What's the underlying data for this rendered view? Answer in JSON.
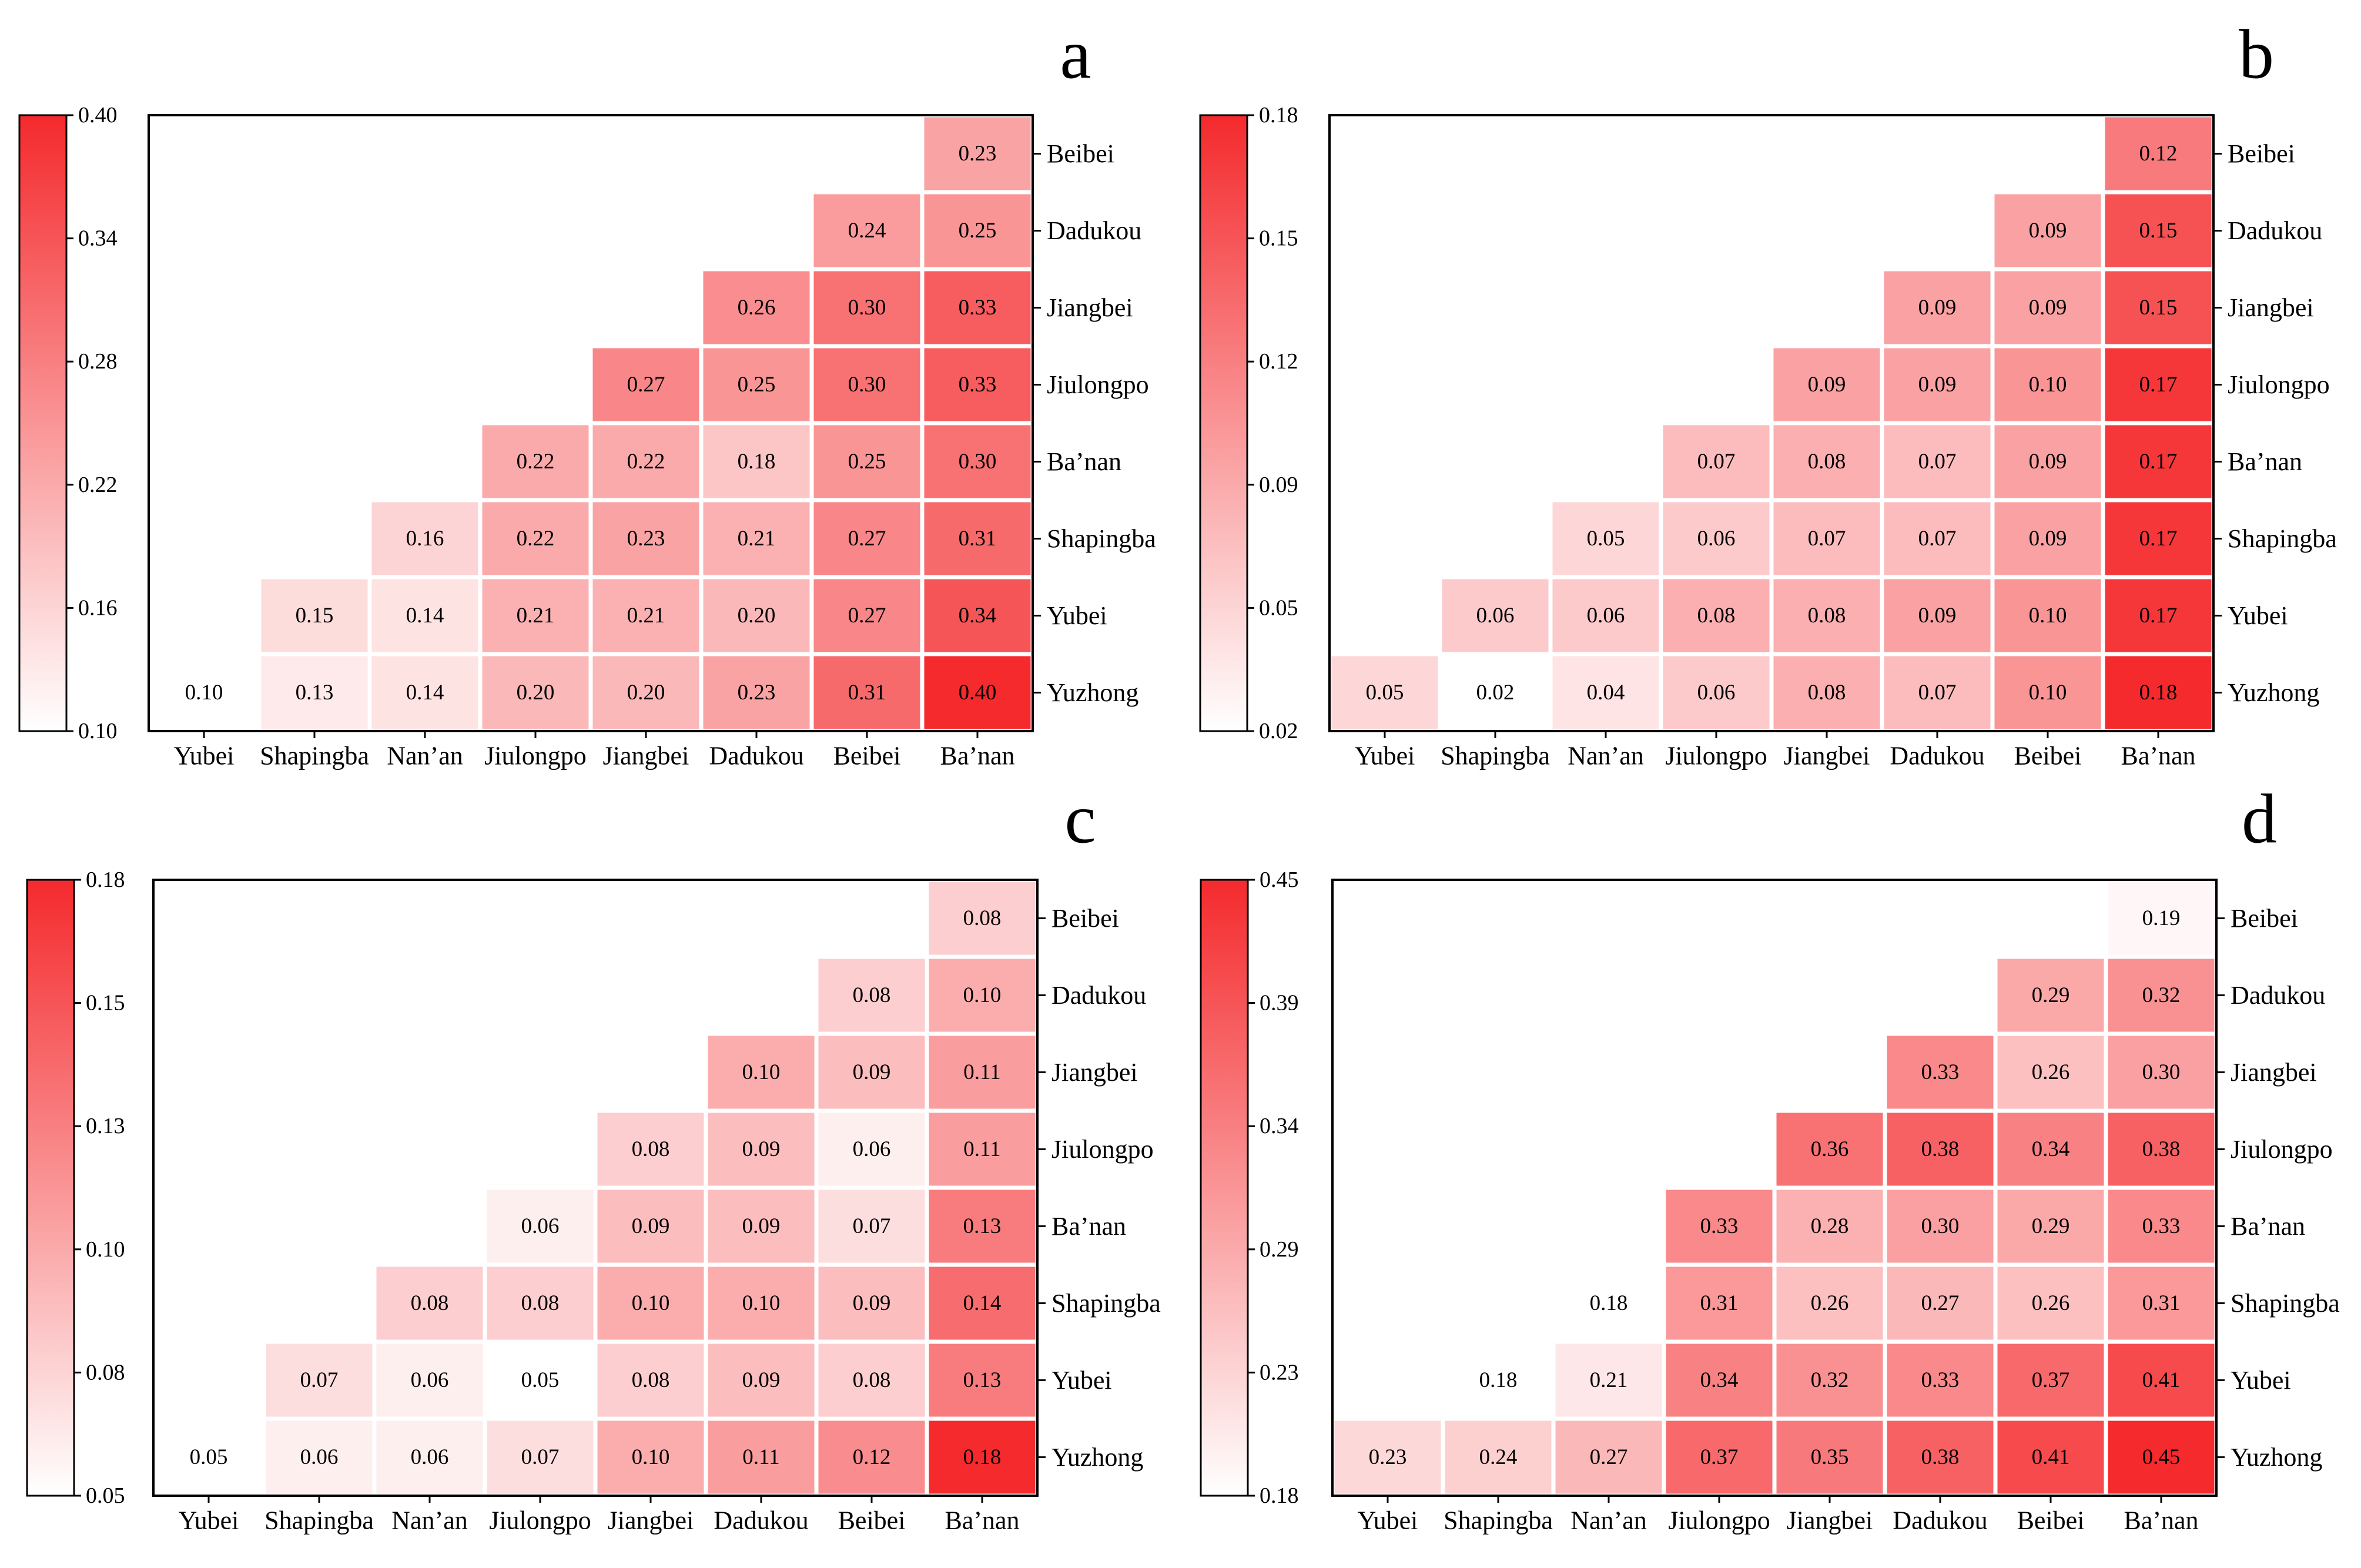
{
  "colors": {
    "low": "#ffffff",
    "high": "#f42a2d",
    "grid": "#ffffff",
    "frame": "#000000"
  },
  "chart_data": [
    {
      "panel": "a",
      "type": "heatmap",
      "rows": [
        "Beibei",
        "Dadukou",
        "Jiangbei",
        "Jiulongpo",
        "Ba’nan",
        "Shapingba",
        "Yubei",
        "Yuzhong"
      ],
      "columns": [
        "Yubei",
        "Shapingba",
        "Nan’an",
        "Jiulongpo",
        "Jiangbei",
        "Dadukou",
        "Beibei",
        "Ba’nan"
      ],
      "values": [
        [
          null,
          null,
          null,
          null,
          null,
          null,
          null,
          0.23
        ],
        [
          null,
          null,
          null,
          null,
          null,
          null,
          0.24,
          0.25
        ],
        [
          null,
          null,
          null,
          null,
          null,
          0.26,
          0.3,
          0.33
        ],
        [
          null,
          null,
          null,
          null,
          0.27,
          0.25,
          0.3,
          0.33
        ],
        [
          null,
          null,
          null,
          0.22,
          0.22,
          0.18,
          0.25,
          0.3
        ],
        [
          null,
          null,
          0.16,
          0.22,
          0.23,
          0.21,
          0.27,
          0.31
        ],
        [
          null,
          0.15,
          0.14,
          0.21,
          0.21,
          0.2,
          0.27,
          0.34
        ],
        [
          0.1,
          0.13,
          0.14,
          0.2,
          0.2,
          0.23,
          0.31,
          0.4
        ]
      ],
      "colorbar_ticks": [
        "0.40",
        "0.34",
        "0.28",
        "0.22",
        "0.16",
        "0.10"
      ],
      "vmin": 0.1,
      "vmax": 0.4
    },
    {
      "panel": "b",
      "type": "heatmap",
      "rows": [
        "Beibei",
        "Dadukou",
        "Jiangbei",
        "Jiulongpo",
        "Ba’nan",
        "Shapingba",
        "Yubei",
        "Yuzhong"
      ],
      "columns": [
        "Yubei",
        "Shapingba",
        "Nan’an",
        "Jiulongpo",
        "Jiangbei",
        "Dadukou",
        "Beibei",
        "Ba’nan"
      ],
      "values": [
        [
          null,
          null,
          null,
          null,
          null,
          null,
          null,
          0.12
        ],
        [
          null,
          null,
          null,
          null,
          null,
          null,
          0.09,
          0.15
        ],
        [
          null,
          null,
          null,
          null,
          null,
          0.09,
          0.09,
          0.15
        ],
        [
          null,
          null,
          null,
          null,
          0.09,
          0.09,
          0.1,
          0.17
        ],
        [
          null,
          null,
          null,
          0.07,
          0.08,
          0.07,
          0.09,
          0.17
        ],
        [
          null,
          null,
          0.05,
          0.06,
          0.07,
          0.07,
          0.09,
          0.17
        ],
        [
          null,
          0.06,
          0.06,
          0.08,
          0.08,
          0.09,
          0.1,
          0.17
        ],
        [
          0.05,
          0.02,
          0.04,
          0.06,
          0.08,
          0.07,
          0.1,
          0.18
        ]
      ],
      "colorbar_ticks": [
        "0.18",
        "0.15",
        "0.12",
        "0.09",
        "0.05",
        "0.02"
      ],
      "vmin": 0.02,
      "vmax": 0.18
    },
    {
      "panel": "c",
      "type": "heatmap",
      "rows": [
        "Beibei",
        "Dadukou",
        "Jiangbei",
        "Jiulongpo",
        "Ba’nan",
        "Shapingba",
        "Yubei",
        "Yuzhong"
      ],
      "columns": [
        "Yubei",
        "Shapingba",
        "Nan’an",
        "Jiulongpo",
        "Jiangbei",
        "Dadukou",
        "Beibei",
        "Ba’nan"
      ],
      "values": [
        [
          null,
          null,
          null,
          null,
          null,
          null,
          null,
          0.08
        ],
        [
          null,
          null,
          null,
          null,
          null,
          null,
          0.08,
          0.1
        ],
        [
          null,
          null,
          null,
          null,
          null,
          0.1,
          0.09,
          0.11
        ],
        [
          null,
          null,
          null,
          null,
          0.08,
          0.09,
          0.06,
          0.11
        ],
        [
          null,
          null,
          null,
          0.06,
          0.09,
          0.09,
          0.07,
          0.13
        ],
        [
          null,
          null,
          0.08,
          0.08,
          0.1,
          0.1,
          0.09,
          0.14
        ],
        [
          null,
          0.07,
          0.06,
          0.05,
          0.08,
          0.09,
          0.08,
          0.13
        ],
        [
          0.05,
          0.06,
          0.06,
          0.07,
          0.1,
          0.11,
          0.12,
          0.18
        ]
      ],
      "colorbar_ticks": [
        "0.18",
        "0.15",
        "0.13",
        "0.10",
        "0.08",
        "0.05"
      ],
      "vmin": 0.05,
      "vmax": 0.18
    },
    {
      "panel": "d",
      "type": "heatmap",
      "rows": [
        "Beibei",
        "Dadukou",
        "Jiangbei",
        "Jiulongpo",
        "Ba’nan",
        "Shapingba",
        "Yubei",
        "Yuzhong"
      ],
      "columns": [
        "Yubei",
        "Shapingba",
        "Nan’an",
        "Jiulongpo",
        "Jiangbei",
        "Dadukou",
        "Beibei",
        "Ba’nan"
      ],
      "values": [
        [
          null,
          null,
          null,
          null,
          null,
          null,
          null,
          0.19
        ],
        [
          null,
          null,
          null,
          null,
          null,
          null,
          0.29,
          0.32
        ],
        [
          null,
          null,
          null,
          null,
          null,
          0.33,
          0.26,
          0.3
        ],
        [
          null,
          null,
          null,
          null,
          0.36,
          0.38,
          0.34,
          0.38
        ],
        [
          null,
          null,
          null,
          0.33,
          0.28,
          0.3,
          0.29,
          0.33
        ],
        [
          null,
          null,
          0.18,
          0.31,
          0.26,
          0.27,
          0.26,
          0.31
        ],
        [
          null,
          0.18,
          0.21,
          0.34,
          0.32,
          0.33,
          0.37,
          0.41
        ],
        [
          0.23,
          0.24,
          0.27,
          0.37,
          0.35,
          0.38,
          0.41,
          0.45
        ]
      ],
      "colorbar_ticks": [
        "0.45",
        "0.39",
        "0.34",
        "0.29",
        "0.23",
        "0.18"
      ],
      "vmin": 0.18,
      "vmax": 0.45
    }
  ]
}
